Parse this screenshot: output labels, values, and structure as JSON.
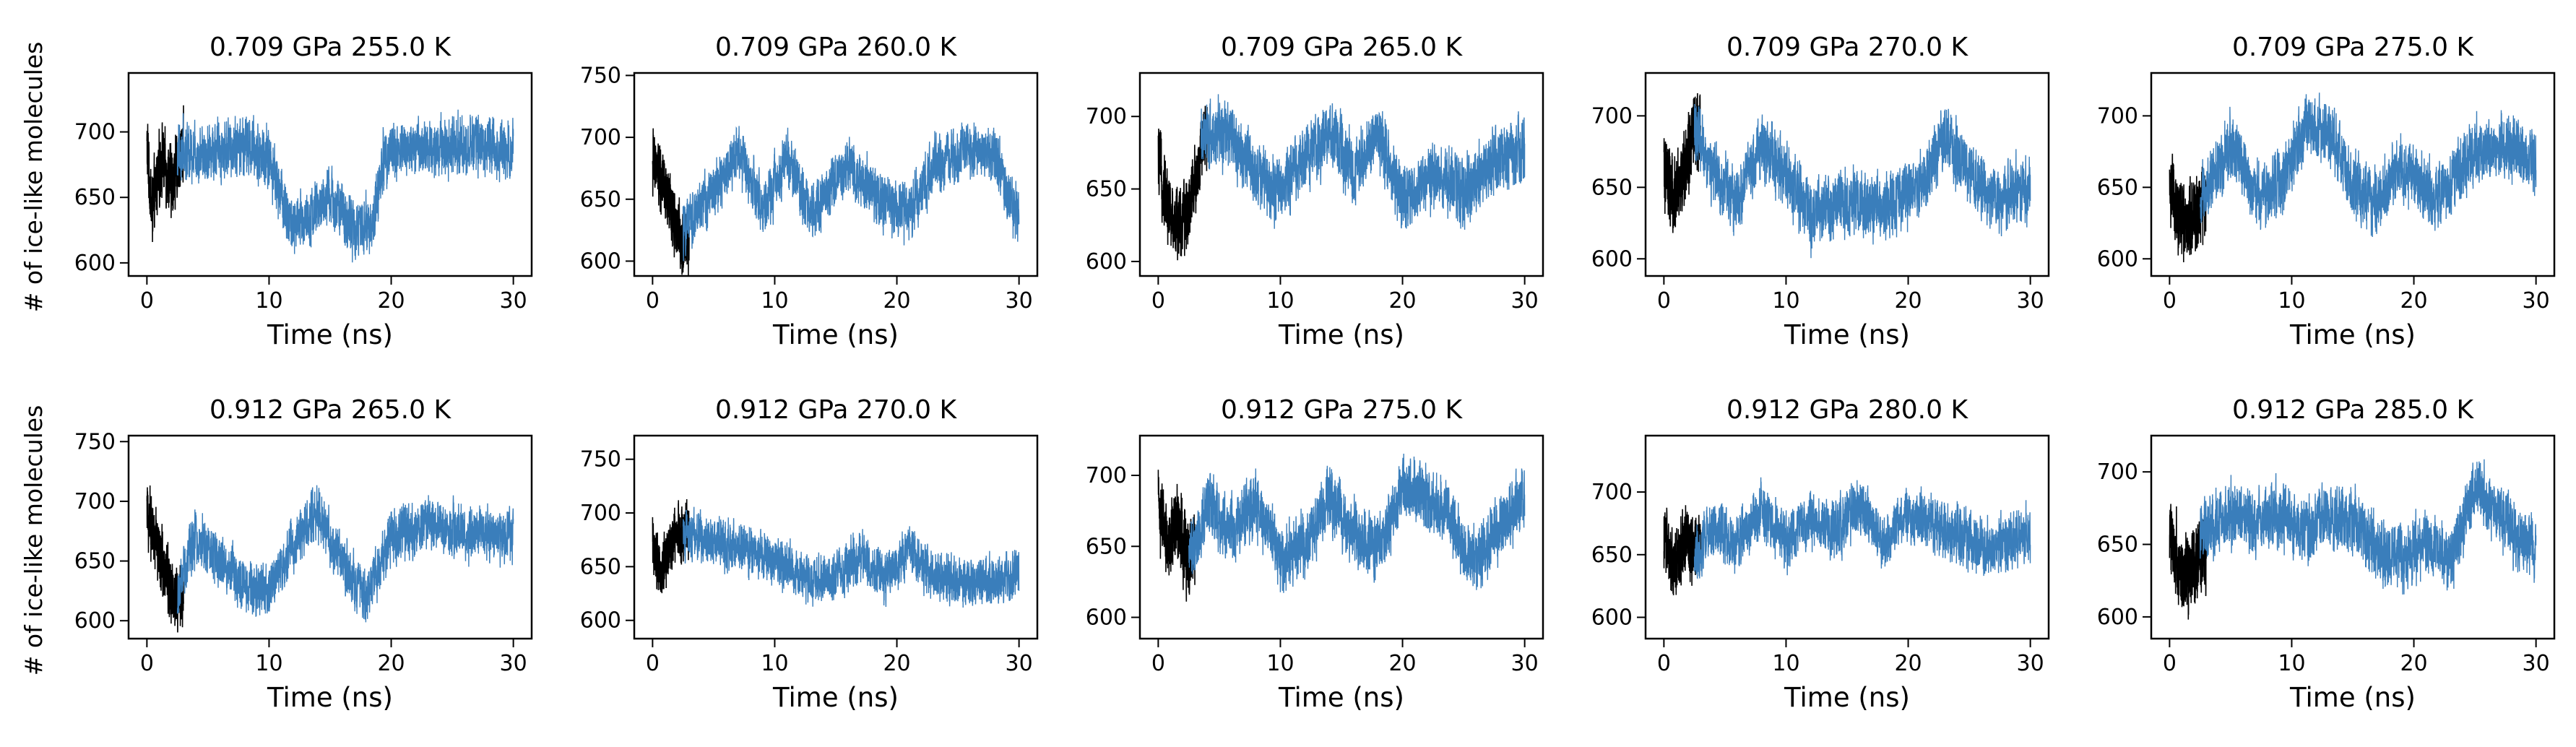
{
  "figure": {
    "ylabel": "# of ice-like molecules",
    "xlabel": "Time (ns)"
  },
  "chart_data": [
    {
      "type": "line",
      "title": "0.709 GPa   255.0 K",
      "xlim": [
        -1.5,
        31.5
      ],
      "ylim": [
        590,
        745
      ],
      "xticks": [
        0,
        10,
        20,
        30
      ],
      "yticks": [
        600,
        650,
        700
      ],
      "xlabel": "Time (ns)",
      "ylabel": "# of ice-like molecules",
      "series": [
        {
          "color": "#000000",
          "x_range": [
            0,
            3
          ],
          "segments": [
            [
              0,
              690
            ],
            [
              0.4,
              640
            ],
            [
              1.2,
              680
            ],
            [
              2.0,
              660
            ],
            [
              3.0,
              690
            ]
          ]
        },
        {
          "color": "#3a7ebb",
          "x_range": [
            2.5,
            30
          ],
          "segments": [
            [
              2.5,
              685
            ],
            [
              5,
              685
            ],
            [
              8,
              690
            ],
            [
              10,
              680
            ],
            [
              12,
              625
            ],
            [
              15,
              650
            ],
            [
              17,
              625
            ],
            [
              18.5,
              630
            ],
            [
              19.5,
              685
            ],
            [
              25,
              690
            ],
            [
              30,
              688
            ]
          ]
        }
      ]
    },
    {
      "type": "line",
      "title": "0.709 GPa   260.0 K",
      "xlim": [
        -1.5,
        31.5
      ],
      "ylim": [
        588,
        752
      ],
      "xticks": [
        0,
        10,
        20,
        30
      ],
      "yticks": [
        600,
        650,
        700,
        750
      ],
      "xlabel": "Time (ns)",
      "ylabel": "",
      "series": [
        {
          "color": "#000000",
          "x_range": [
            0,
            3
          ],
          "segments": [
            [
              0,
              680
            ],
            [
              0.6,
              670
            ],
            [
              1.5,
              640
            ],
            [
              2.5,
              615
            ],
            [
              3.0,
              620
            ]
          ]
        },
        {
          "color": "#3a7ebb",
          "x_range": [
            2.5,
            30
          ],
          "segments": [
            [
              2.5,
              625
            ],
            [
              5,
              655
            ],
            [
              7,
              690
            ],
            [
              9,
              640
            ],
            [
              11,
              685
            ],
            [
              13,
              640
            ],
            [
              16,
              680
            ],
            [
              19,
              645
            ],
            [
              21,
              640
            ],
            [
              23,
              675
            ],
            [
              26,
              690
            ],
            [
              28,
              685
            ],
            [
              30,
              630
            ]
          ]
        }
      ]
    },
    {
      "type": "line",
      "title": "0.709 GPa   265.0 K",
      "xlim": [
        -1.5,
        31.5
      ],
      "ylim": [
        590,
        730
      ],
      "xticks": [
        0,
        10,
        20,
        30
      ],
      "yticks": [
        600,
        650,
        700
      ],
      "xlabel": "Time (ns)",
      "ylabel": "",
      "series": [
        {
          "color": "#000000",
          "x_range": [
            0,
            4
          ],
          "segments": [
            [
              0,
              670
            ],
            [
              1,
              630
            ],
            [
              2,
              625
            ],
            [
              3,
              655
            ],
            [
              4,
              690
            ]
          ]
        },
        {
          "color": "#3a7ebb",
          "x_range": [
            3.5,
            30
          ],
          "segments": [
            [
              3.5,
              690
            ],
            [
              6,
              685
            ],
            [
              8,
              660
            ],
            [
              10,
              650
            ],
            [
              12,
              670
            ],
            [
              14,
              690
            ],
            [
              16,
              660
            ],
            [
              18,
              690
            ],
            [
              20,
              640
            ],
            [
              22,
              660
            ],
            [
              25,
              650
            ],
            [
              28,
              670
            ],
            [
              30,
              675
            ]
          ]
        }
      ]
    },
    {
      "type": "line",
      "title": "0.709 GPa   270.0 K",
      "xlim": [
        -1.5,
        31.5
      ],
      "ylim": [
        588,
        730
      ],
      "xticks": [
        0,
        10,
        20,
        30
      ],
      "yticks": [
        600,
        650,
        700
      ],
      "xlabel": "Time (ns)",
      "ylabel": "",
      "series": [
        {
          "color": "#000000",
          "x_range": [
            0,
            3
          ],
          "segments": [
            [
              0,
              660
            ],
            [
              0.8,
              640
            ],
            [
              1.6,
              660
            ],
            [
              2.4,
              685
            ],
            [
              3.0,
              690
            ]
          ]
        },
        {
          "color": "#3a7ebb",
          "x_range": [
            2.5,
            30
          ],
          "segments": [
            [
              2.5,
              690
            ],
            [
              4,
              660
            ],
            [
              6,
              640
            ],
            [
              8,
              680
            ],
            [
              10,
              660
            ],
            [
              12,
              630
            ],
            [
              15,
              640
            ],
            [
              18,
              635
            ],
            [
              21,
              650
            ],
            [
              23,
              685
            ],
            [
              25,
              660
            ],
            [
              27,
              640
            ],
            [
              30,
              650
            ]
          ]
        }
      ]
    },
    {
      "type": "line",
      "title": "0.709 GPa   275.0 K",
      "xlim": [
        -1.5,
        31.5
      ],
      "ylim": [
        588,
        730
      ],
      "xticks": [
        0,
        10,
        20,
        30
      ],
      "yticks": [
        600,
        650,
        700
      ],
      "xlabel": "Time (ns)",
      "ylabel": "",
      "series": [
        {
          "color": "#000000",
          "x_range": [
            0,
            3
          ],
          "segments": [
            [
              0,
              650
            ],
            [
              0.7,
              630
            ],
            [
              1.5,
              628
            ],
            [
              2.3,
              635
            ],
            [
              3.0,
              640
            ]
          ]
        },
        {
          "color": "#3a7ebb",
          "x_range": [
            2.5,
            30
          ],
          "segments": [
            [
              2.5,
              640
            ],
            [
              5,
              680
            ],
            [
              7,
              645
            ],
            [
              9,
              650
            ],
            [
              11,
              690
            ],
            [
              13,
              690
            ],
            [
              15,
              650
            ],
            [
              17,
              640
            ],
            [
              19,
              665
            ],
            [
              22,
              640
            ],
            [
              25,
              675
            ],
            [
              28,
              680
            ],
            [
              30,
              665
            ]
          ]
        }
      ]
    },
    {
      "type": "line",
      "title": "0.912 GPa   265.0 K",
      "xlim": [
        -1.5,
        31.5
      ],
      "ylim": [
        585,
        755
      ],
      "xticks": [
        0,
        10,
        20,
        30
      ],
      "yticks": [
        600,
        650,
        700,
        750
      ],
      "xlabel": "Time (ns)",
      "ylabel": "# of ice-like molecules",
      "series": [
        {
          "color": "#000000",
          "x_range": [
            0,
            3
          ],
          "segments": [
            [
              0,
              690
            ],
            [
              0.7,
              670
            ],
            [
              1.5,
              640
            ],
            [
              2.3,
              620
            ],
            [
              3.0,
              615
            ]
          ]
        },
        {
          "color": "#3a7ebb",
          "x_range": [
            2.5,
            30
          ],
          "segments": [
            [
              2.5,
              620
            ],
            [
              4,
              670
            ],
            [
              6,
              650
            ],
            [
              8,
              630
            ],
            [
              10,
              625
            ],
            [
              12,
              665
            ],
            [
              14,
              690
            ],
            [
              16,
              645
            ],
            [
              18,
              620
            ],
            [
              20,
              670
            ],
            [
              23,
              680
            ],
            [
              26,
              675
            ],
            [
              30,
              670
            ]
          ]
        }
      ]
    },
    {
      "type": "line",
      "title": "0.912 GPa   270.0 K",
      "xlim": [
        -1.5,
        31.5
      ],
      "ylim": [
        583,
        772
      ],
      "xticks": [
        0,
        10,
        20,
        30
      ],
      "yticks": [
        600,
        650,
        700,
        750
      ],
      "xlabel": "Time (ns)",
      "ylabel": "",
      "series": [
        {
          "color": "#000000",
          "x_range": [
            0,
            3
          ],
          "segments": [
            [
              0,
              670
            ],
            [
              0.6,
              640
            ],
            [
              1.2,
              660
            ],
            [
              1.8,
              680
            ],
            [
              3.0,
              685
            ]
          ]
        },
        {
          "color": "#3a7ebb",
          "x_range": [
            2.5,
            30
          ],
          "segments": [
            [
              2.5,
              680
            ],
            [
              5,
              675
            ],
            [
              7,
              665
            ],
            [
              9,
              660
            ],
            [
              11,
              650
            ],
            [
              13,
              635
            ],
            [
              15,
              640
            ],
            [
              17,
              660
            ],
            [
              19,
              640
            ],
            [
              21,
              665
            ],
            [
              23,
              640
            ],
            [
              26,
              635
            ],
            [
              30,
              640
            ]
          ]
        }
      ]
    },
    {
      "type": "line",
      "title": "0.912 GPa   275.0 K",
      "xlim": [
        -1.5,
        31.5
      ],
      "ylim": [
        585,
        728
      ],
      "xticks": [
        0,
        10,
        20,
        30
      ],
      "yticks": [
        600,
        650,
        700
      ],
      "xlabel": "Time (ns)",
      "ylabel": "",
      "series": [
        {
          "color": "#000000",
          "x_range": [
            0,
            3
          ],
          "segments": [
            [
              0,
              680
            ],
            [
              0.8,
              650
            ],
            [
              1.6,
              670
            ],
            [
              2.4,
              640
            ],
            [
              3.0,
              650
            ]
          ]
        },
        {
          "color": "#3a7ebb",
          "x_range": [
            2.5,
            30
          ],
          "segments": [
            [
              2.5,
              640
            ],
            [
              4,
              680
            ],
            [
              6,
              660
            ],
            [
              8,
              680
            ],
            [
              10,
              640
            ],
            [
              12,
              650
            ],
            [
              14,
              685
            ],
            [
              16,
              660
            ],
            [
              18,
              650
            ],
            [
              20,
              690
            ],
            [
              23,
              680
            ],
            [
              26,
              640
            ],
            [
              30,
              685
            ]
          ]
        }
      ]
    },
    {
      "type": "line",
      "title": "0.912 GPa   280.0 K",
      "xlim": [
        -1.5,
        31.5
      ],
      "ylim": [
        583,
        745
      ],
      "xticks": [
        0,
        10,
        20,
        30
      ],
      "yticks": [
        600,
        650,
        700
      ],
      "xlabel": "Time (ns)",
      "ylabel": "",
      "series": [
        {
          "color": "#000000",
          "x_range": [
            0,
            3
          ],
          "segments": [
            [
              0,
              670
            ],
            [
              0.8,
              640
            ],
            [
              1.6,
              660
            ],
            [
              2.4,
              655
            ],
            [
              3.0,
              660
            ]
          ]
        },
        {
          "color": "#3a7ebb",
          "x_range": [
            2.5,
            30
          ],
          "segments": [
            [
              2.5,
              650
            ],
            [
              4,
              670
            ],
            [
              6,
              660
            ],
            [
              8,
              685
            ],
            [
              10,
              660
            ],
            [
              12,
              680
            ],
            [
              14,
              670
            ],
            [
              16,
              690
            ],
            [
              18,
              660
            ],
            [
              20,
              680
            ],
            [
              23,
              670
            ],
            [
              26,
              655
            ],
            [
              30,
              665
            ]
          ]
        }
      ]
    },
    {
      "type": "line",
      "title": "0.912 GPa   285.0 K",
      "xlim": [
        -1.5,
        31.5
      ],
      "ylim": [
        585,
        725
      ],
      "xticks": [
        0,
        10,
        20,
        30
      ],
      "yticks": [
        600,
        650,
        700
      ],
      "xlabel": "Time (ns)",
      "ylabel": "",
      "series": [
        {
          "color": "#000000",
          "x_range": [
            0,
            3
          ],
          "segments": [
            [
              0,
              660
            ],
            [
              0.8,
              635
            ],
            [
              1.6,
              630
            ],
            [
              2.4,
              640
            ],
            [
              3.0,
              640
            ]
          ]
        },
        {
          "color": "#3a7ebb",
          "x_range": [
            2.5,
            30
          ],
          "segments": [
            [
              2.5,
              660
            ],
            [
              5,
              670
            ],
            [
              7,
              665
            ],
            [
              9,
              670
            ],
            [
              11,
              660
            ],
            [
              13,
              670
            ],
            [
              15,
              665
            ],
            [
              17,
              650
            ],
            [
              19,
              640
            ],
            [
              21,
              650
            ],
            [
              23,
              640
            ],
            [
              25,
              690
            ],
            [
              28,
              660
            ],
            [
              30,
              645
            ]
          ]
        }
      ]
    }
  ]
}
